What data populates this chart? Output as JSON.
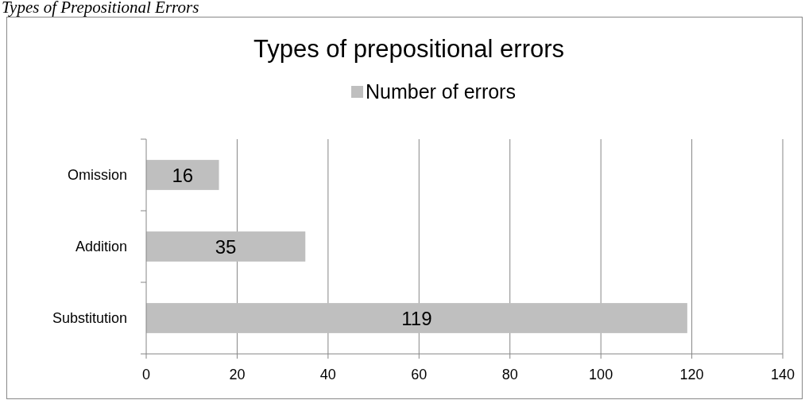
{
  "chart_data": {
    "type": "bar",
    "orientation": "horizontal",
    "title": "Types of prepositional errors",
    "annotations": [
      "Types of Prepositional Errors"
    ],
    "categories": [
      "Omission",
      "Addition",
      "Substitution"
    ],
    "series": [
      {
        "name": "Number of errors",
        "color": "#bfbfbf",
        "values": [
          16,
          35,
          119
        ]
      }
    ],
    "xlim": [
      0,
      140
    ],
    "xticks": [
      0,
      20,
      40,
      60,
      80,
      100,
      120,
      140
    ],
    "grid": "x",
    "legend": "top",
    "data_labels": true
  }
}
